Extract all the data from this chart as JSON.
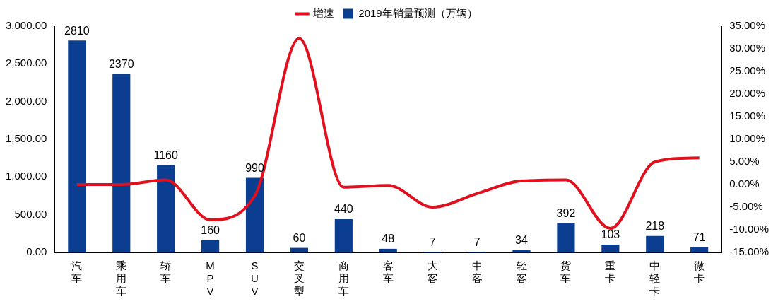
{
  "chart_data": {
    "type": "bar",
    "categories": [
      "汽车",
      "乘用车",
      "轿车",
      "MPV",
      "SUV",
      "交叉型",
      "商用车",
      "客车",
      "大客",
      "中客",
      "轻客",
      "货车",
      "重卡",
      "中轻卡",
      "微卡"
    ],
    "series": [
      {
        "name": "2019年销量预测（万辆）",
        "color": "#0b3d91",
        "values": [
          2810,
          2370,
          1160,
          160,
          990,
          60,
          440,
          48,
          7,
          7,
          34,
          392,
          103,
          218,
          71
        ],
        "value_labels": [
          "2810",
          "2370",
          "1160",
          "160",
          "990",
          "60",
          "440",
          "48",
          "7",
          "7",
          "34",
          "392",
          "103",
          "218",
          "71"
        ]
      },
      {
        "name": "增速",
        "type": "line",
        "axis": "y2",
        "color": "#e0101e",
        "values": [
          0.0,
          0.0,
          1.0,
          -7.8,
          -2.5,
          32.3,
          -0.6,
          -0.2,
          -5.0,
          -2.0,
          0.8,
          1.0,
          -9.7,
          5.0,
          5.9
        ]
      }
    ],
    "legend": "top",
    "marker": "none",
    "line_style": "solid",
    "grid": false,
    "ylim": [
      0,
      3000
    ],
    "yticks": [
      {
        "value": 0,
        "label": "0.00"
      },
      {
        "value": 500,
        "label": "500.00"
      },
      {
        "value": 1000,
        "label": "1,000.00"
      },
      {
        "value": 1500,
        "label": "1,500.00"
      },
      {
        "value": 2000,
        "label": "2,000.00"
      },
      {
        "value": 2500,
        "label": "2,500.00"
      },
      {
        "value": 3000,
        "label": "3,000.00"
      }
    ],
    "y2lim": [
      -15,
      35
    ],
    "y2ticks": [
      {
        "value": -15,
        "label": "-15.00%"
      },
      {
        "value": -10,
        "label": "-10.00%"
      },
      {
        "value": -5,
        "label": "-5.00%"
      },
      {
        "value": 0,
        "label": "0.00%"
      },
      {
        "value": 5,
        "label": "5.00%"
      },
      {
        "value": 10,
        "label": "10.00%"
      },
      {
        "value": 15,
        "label": "15.00%"
      },
      {
        "value": 20,
        "label": "20.00%"
      },
      {
        "value": 25,
        "label": "25.00%"
      },
      {
        "value": 30,
        "label": "30.00%"
      },
      {
        "value": 35,
        "label": "35.00%"
      }
    ]
  }
}
